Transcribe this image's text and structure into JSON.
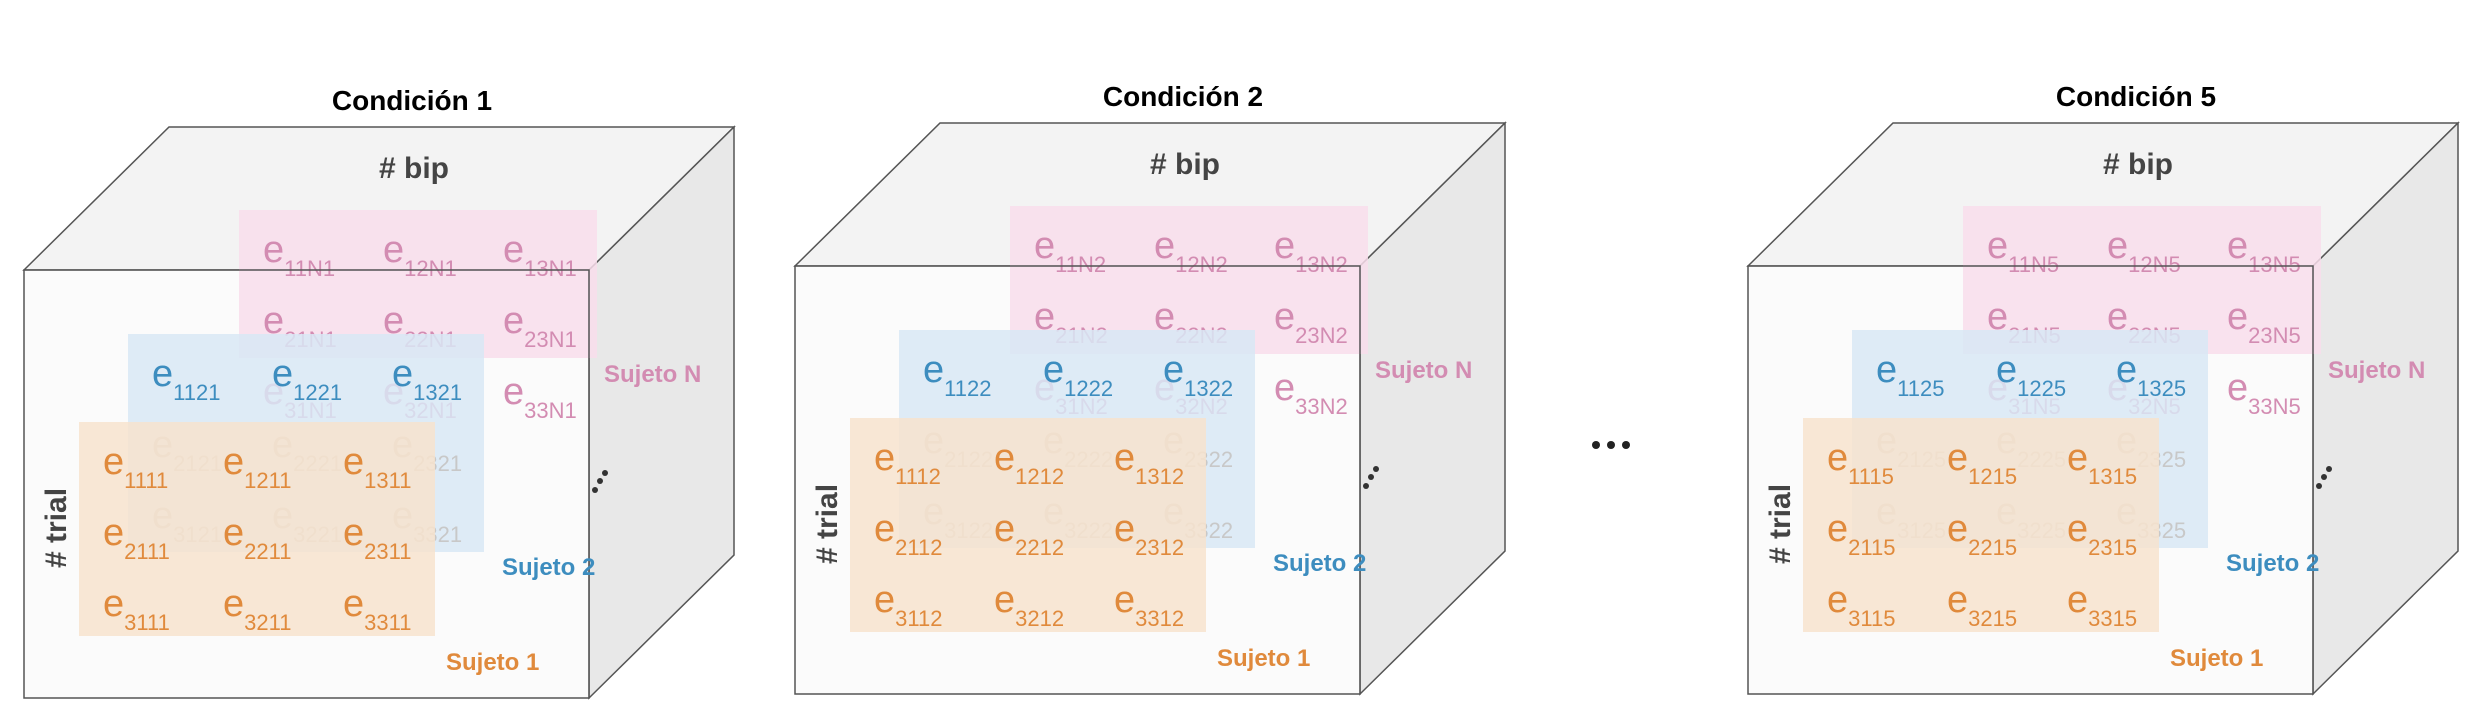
{
  "colors": {
    "sujeto_1": "#E08A3C",
    "sujeto_2": "#3D8DBF",
    "sujeto_n": "#D38CB2",
    "sujeto_1_fill": "#F7E3CE",
    "sujeto_2_fill": "#D8E8F5",
    "sujeto_n_fill": "#F8DDEB",
    "hidden_text": "#C8C8C8",
    "cube_edge": "#555555",
    "cube_front": "#F8F8F8",
    "cube_side": "#E8E8E8"
  },
  "axis_labels": {
    "trial": "# trial",
    "bip": "# bip"
  },
  "ellipsis": "...",
  "cubes": [
    {
      "title": "Condición 1",
      "cond": "1",
      "subject_labels": [
        "Sujeto 1",
        "Sujeto 2",
        "Sujeto N"
      ],
      "subjects": [
        "1",
        "2",
        "N"
      ]
    },
    {
      "title": "Condición 2",
      "cond": "2",
      "subject_labels": [
        "Sujeto 1",
        "Sujeto 2",
        "Sujeto N"
      ],
      "subjects": [
        "1",
        "2",
        "N"
      ]
    },
    {
      "title": "Condición 5",
      "cond": "5",
      "subject_labels": [
        "Sujeto 1",
        "Sujeto 2",
        "Sujeto N"
      ],
      "subjects": [
        "1",
        "2",
        "N"
      ]
    }
  ]
}
